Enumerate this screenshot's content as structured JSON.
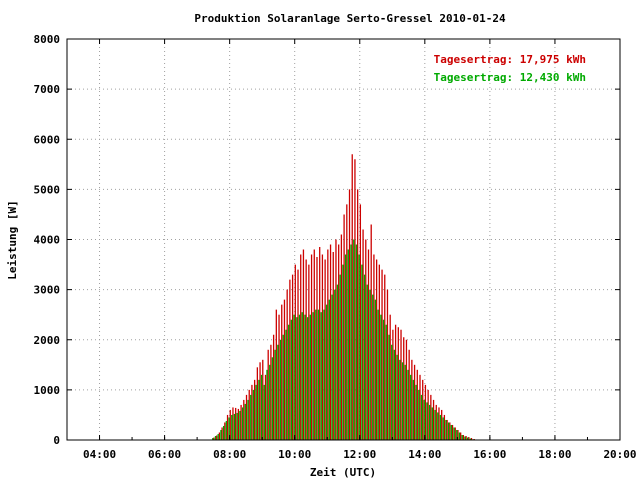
{
  "chart_data": {
    "type": "bar",
    "title": "Produktion Solaranlage Serto-Gressel 2010-01-24",
    "xlabel": "Zeit (UTC)",
    "ylabel": "Leistung [W]",
    "xlim": [
      "03:00",
      "20:00"
    ],
    "ylim": [
      0,
      8000
    ],
    "x_ticks": [
      "04:00",
      "06:00",
      "08:00",
      "10:00",
      "12:00",
      "14:00",
      "16:00",
      "18:00",
      "20:00"
    ],
    "y_ticks": [
      0,
      1000,
      2000,
      3000,
      4000,
      5000,
      6000,
      7000,
      8000
    ],
    "grid": true,
    "legend_position": "top-right",
    "series": [
      {
        "color": "#cc0000",
        "legend_label": "Tagesertrag: 17,975 kWh",
        "x": [
          "07:30",
          "07:35",
          "07:40",
          "07:45",
          "07:50",
          "07:55",
          "08:00",
          "08:05",
          "08:10",
          "08:15",
          "08:20",
          "08:25",
          "08:30",
          "08:35",
          "08:40",
          "08:45",
          "08:50",
          "08:55",
          "09:00",
          "09:05",
          "09:10",
          "09:15",
          "09:20",
          "09:25",
          "09:30",
          "09:35",
          "09:40",
          "09:45",
          "09:50",
          "09:55",
          "10:00",
          "10:05",
          "10:10",
          "10:15",
          "10:20",
          "10:25",
          "10:30",
          "10:35",
          "10:40",
          "10:45",
          "10:50",
          "10:55",
          "11:00",
          "11:05",
          "11:10",
          "11:15",
          "11:20",
          "11:25",
          "11:30",
          "11:35",
          "11:40",
          "11:45",
          "11:50",
          "11:55",
          "12:00",
          "12:05",
          "12:10",
          "12:15",
          "12:20",
          "12:25",
          "12:30",
          "12:35",
          "12:40",
          "12:45",
          "12:50",
          "12:55",
          "13:00",
          "13:05",
          "13:10",
          "13:15",
          "13:20",
          "13:25",
          "13:30",
          "13:35",
          "13:40",
          "13:45",
          "13:50",
          "13:55",
          "14:00",
          "14:05",
          "14:10",
          "14:15",
          "14:20",
          "14:25",
          "14:30",
          "14:35",
          "14:40",
          "14:45",
          "14:50",
          "14:55",
          "15:00",
          "15:05",
          "15:10",
          "15:15",
          "15:20",
          "15:25",
          "15:30",
          "15:35",
          "15:40",
          "15:45",
          "15:50",
          "15:55",
          "16:00"
        ],
        "values": [
          50,
          90,
          150,
          250,
          350,
          500,
          600,
          650,
          640,
          620,
          700,
          800,
          900,
          1000,
          1100,
          1200,
          1450,
          1550,
          1600,
          1300,
          1800,
          1900,
          2100,
          2600,
          2500,
          2700,
          2800,
          3000,
          3200,
          3300,
          3500,
          3400,
          3700,
          3800,
          3600,
          3500,
          3700,
          3800,
          3650,
          3850,
          3700,
          3600,
          3800,
          3900,
          3750,
          4000,
          3900,
          4100,
          4500,
          4700,
          5000,
          5700,
          5600,
          5000,
          4700,
          4200,
          4000,
          3800,
          4300,
          3700,
          3600,
          3500,
          3400,
          3300,
          3000,
          2500,
          2200,
          2300,
          2250,
          2200,
          2050,
          2000,
          1800,
          1600,
          1500,
          1400,
          1300,
          1200,
          1100,
          1000,
          900,
          800,
          700,
          650,
          600,
          500,
          400,
          350,
          300,
          250,
          200,
          150,
          100,
          80,
          60,
          40,
          20,
          10,
          5,
          0,
          0,
          0,
          0
        ],
        "note_values_within": "hourly samples"
      },
      {
        "color": "#00aa00",
        "legend_label": "Tagesertrag: 12,430 kWh",
        "x": [
          "07:30",
          "07:35",
          "07:40",
          "07:45",
          "07:50",
          "07:55",
          "08:00",
          "08:05",
          "08:10",
          "08:15",
          "08:20",
          "08:25",
          "08:30",
          "08:35",
          "08:40",
          "08:45",
          "08:50",
          "08:55",
          "09:00",
          "09:05",
          "09:10",
          "09:15",
          "09:20",
          "09:25",
          "09:30",
          "09:35",
          "09:40",
          "09:45",
          "09:50",
          "09:55",
          "10:00",
          "10:05",
          "10:10",
          "10:15",
          "10:20",
          "10:25",
          "10:30",
          "10:35",
          "10:40",
          "10:45",
          "10:50",
          "10:55",
          "11:00",
          "11:05",
          "11:10",
          "11:15",
          "11:20",
          "11:25",
          "11:30",
          "11:35",
          "11:40",
          "11:45",
          "11:50",
          "11:55",
          "12:00",
          "12:05",
          "12:10",
          "12:15",
          "12:20",
          "12:25",
          "12:30",
          "12:35",
          "12:40",
          "12:45",
          "12:50",
          "12:55",
          "13:00",
          "13:05",
          "13:10",
          "13:15",
          "13:20",
          "13:25",
          "13:30",
          "13:35",
          "13:40",
          "13:45",
          "13:50",
          "13:55",
          "14:00",
          "14:05",
          "14:10",
          "14:15",
          "14:20",
          "14:25",
          "14:30",
          "14:35",
          "14:40",
          "14:45",
          "14:50",
          "14:55",
          "15:00",
          "15:05",
          "15:10",
          "15:15",
          "15:20",
          "15:25",
          "15:30",
          "15:35",
          "15:40",
          "15:45",
          "15:50",
          "15:55",
          "16:00"
        ],
        "values": [
          40,
          80,
          120,
          200,
          280,
          380,
          450,
          500,
          520,
          540,
          580,
          650,
          720,
          800,
          900,
          1000,
          1100,
          1200,
          1300,
          1100,
          1400,
          1500,
          1650,
          1800,
          1900,
          2000,
          2100,
          2200,
          2300,
          2400,
          2500,
          2450,
          2500,
          2550,
          2500,
          2450,
          2500,
          2550,
          2600,
          2600,
          2550,
          2600,
          2700,
          2800,
          2900,
          3000,
          3100,
          3300,
          3500,
          3700,
          3800,
          3900,
          4000,
          3900,
          3700,
          3500,
          3300,
          3100,
          3000,
          2900,
          2800,
          2600,
          2500,
          2400,
          2300,
          2100,
          1900,
          1800,
          1700,
          1600,
          1550,
          1500,
          1400,
          1300,
          1200,
          1100,
          1000,
          900,
          800,
          750,
          700,
          650,
          600,
          550,
          500,
          450,
          400,
          350,
          300,
          250,
          200,
          150,
          100,
          70,
          50,
          30,
          15,
          8,
          3,
          0,
          0,
          0,
          0
        ]
      }
    ]
  }
}
